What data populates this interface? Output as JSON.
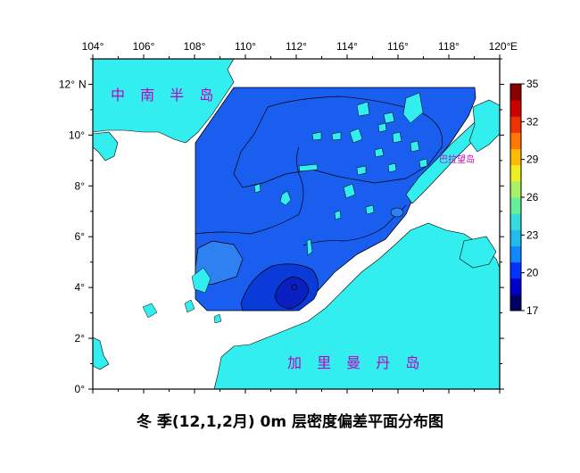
{
  "title": "冬 季(12,1,2月) 0m 层密度偏差平面分布图",
  "axes": {
    "lon_ticks": [
      "104°",
      "106°",
      "108°",
      "110°",
      "112°",
      "114°",
      "116°",
      "118°",
      "120°"
    ],
    "lon_unit": "E",
    "lat_ticks": [
      "0°",
      "2°",
      "4°",
      "6°",
      "8°",
      "10°",
      "12°"
    ],
    "lat_unit": "N"
  },
  "regions": {
    "indochina": "中 南 半 岛",
    "borneo": "加 里 曼 丹 岛",
    "palawan": "巴拉望岛"
  },
  "colorbar": {
    "ticks": [
      "17",
      "20",
      "23",
      "26",
      "29",
      "32",
      "35"
    ],
    "colors": [
      "#000066",
      "#0000cc",
      "#0033ff",
      "#1188ff",
      "#22bbee",
      "#33dddd",
      "#66ee99",
      "#aaf066",
      "#eeee22",
      "#ffbb00",
      "#ff7700",
      "#ee3300",
      "#cc0000",
      "#880000"
    ]
  },
  "colors": {
    "land": "#33eeee",
    "field_base": "#1a5ef0",
    "field_dark": "#0a3ad8",
    "field_light": "#2f80f0"
  },
  "chart_data": {
    "type": "heatmap",
    "variable": "0m 层密度偏差",
    "extent": {
      "lon": [
        104,
        120
      ],
      "lat": [
        0,
        13
      ]
    },
    "colorbar_range": [
      17,
      35
    ],
    "contour_features": [
      {
        "kind": "low",
        "lon": 112.0,
        "lat": 3.9
      },
      {
        "kind": "high",
        "lon": 109.6,
        "lat": 4.6
      }
    ]
  }
}
